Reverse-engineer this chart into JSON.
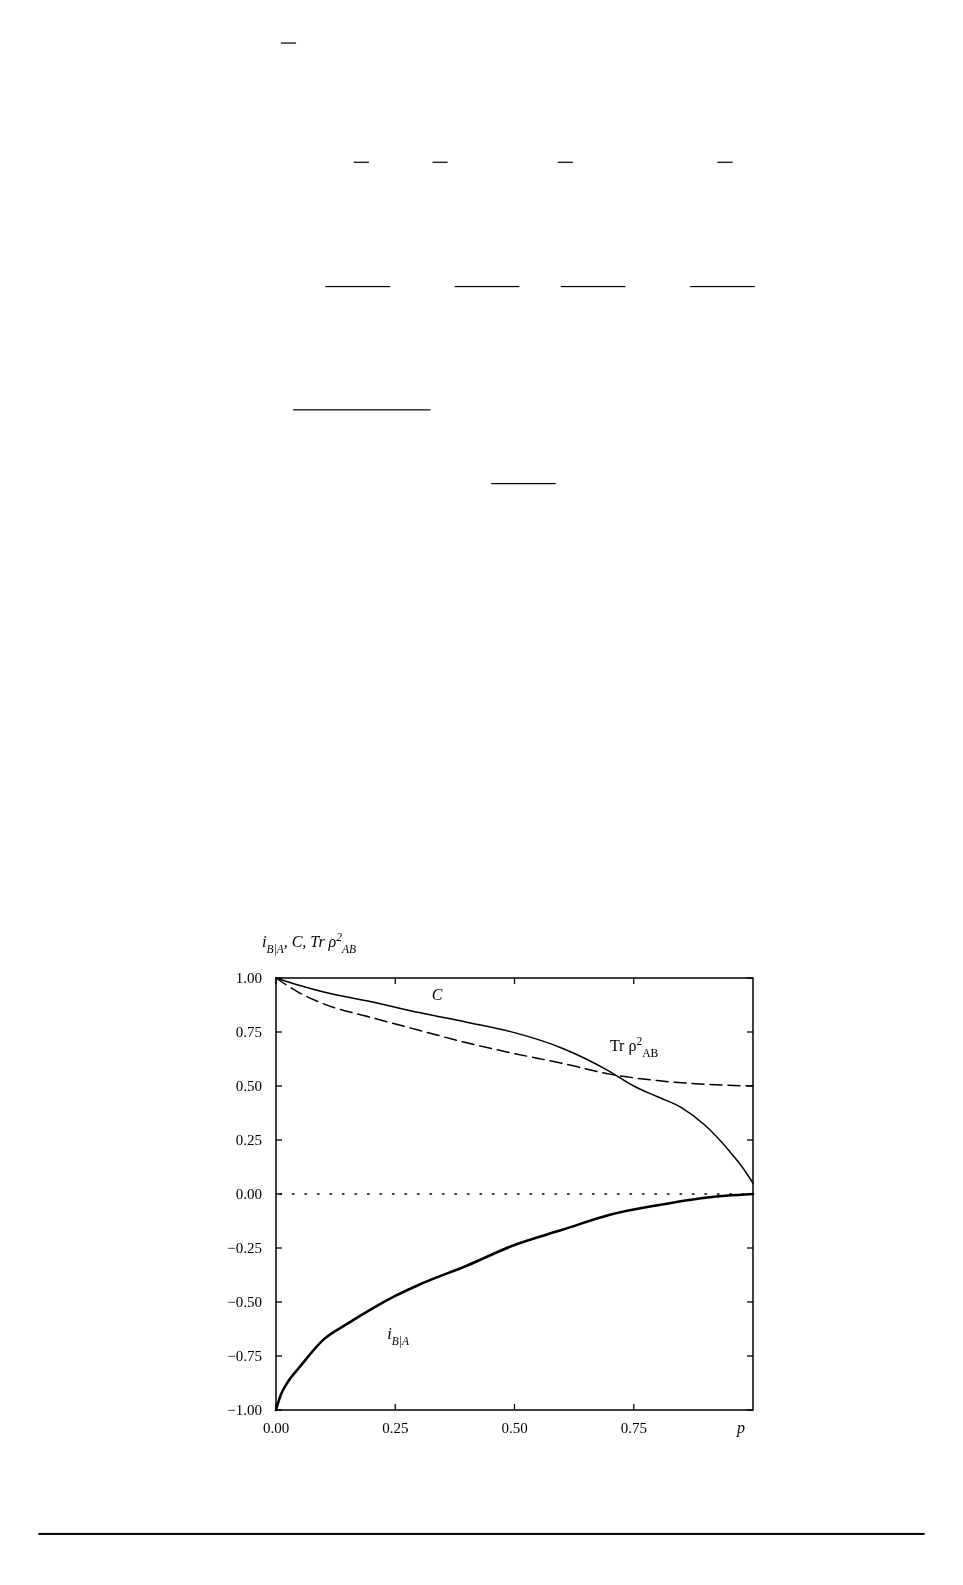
{
  "chart_data": {
    "type": "line",
    "ylabel": "i$_{B|A}$, C, Tr ρ$^{2}$$_{AB}$",
    "xlabel": "p",
    "xlim": [
      0,
      1
    ],
    "ylim": [
      -1,
      1
    ],
    "xticks": [
      {
        "value": 0,
        "label": "0.00"
      },
      {
        "value": 0.25,
        "label": "0.25"
      },
      {
        "value": 0.5,
        "label": "0.50"
      },
      {
        "value": 0.75,
        "label": "0.75"
      }
    ],
    "yticks": [
      {
        "value": -1,
        "label": "−1.00"
      },
      {
        "value": -0.75,
        "label": "−0.75"
      },
      {
        "value": -0.5,
        "label": "−0.50"
      },
      {
        "value": -0.25,
        "label": "−0.25"
      },
      {
        "value": 0,
        "label": "0.00"
      },
      {
        "value": 0.25,
        "label": "0.25"
      },
      {
        "value": 0.5,
        "label": "0.50"
      },
      {
        "value": 0.75,
        "label": "0.75"
      },
      {
        "value": 1,
        "label": "1.00"
      }
    ],
    "grid": false,
    "marker": "none",
    "series": [
      {
        "name": "C",
        "color": "#000000",
        "line_style": "solid",
        "x": [
          0,
          0.05,
          0.1,
          0.2,
          0.3,
          0.4,
          0.5,
          0.6,
          0.7,
          0.75,
          0.8,
          0.85,
          0.9,
          0.95,
          0.98,
          1
        ],
        "values": [
          1,
          0.965,
          0.935,
          0.89,
          0.84,
          0.795,
          0.747,
          0.675,
          0.567,
          0.5,
          0.45,
          0.4,
          0.317,
          0.2,
          0.117,
          0.05
        ]
      },
      {
        "name": "Tr ρ$^{2}$$_{AB}$",
        "color": "#000000",
        "line_style": "dashed",
        "x": [
          0,
          0.05,
          0.1,
          0.2,
          0.3,
          0.4,
          0.5,
          0.6,
          0.7,
          0.8,
          0.9,
          1
        ],
        "values": [
          1,
          0.93,
          0.88,
          0.817,
          0.758,
          0.7,
          0.65,
          0.605,
          0.555,
          0.525,
          0.508,
          0.5
        ]
      },
      {
        "name": "i$_{B|A}$",
        "color": "#000000",
        "line_style": "solid",
        "x": [
          0,
          0.01,
          0.025,
          0.05,
          0.1,
          0.15,
          0.2,
          0.25,
          0.3,
          0.4,
          0.5,
          0.6,
          0.7,
          0.8,
          0.9,
          1
        ],
        "values": [
          -1,
          -0.93,
          -0.87,
          -0.8,
          -0.673,
          -0.6,
          -0.533,
          -0.472,
          -0.42,
          -0.332,
          -0.236,
          -0.166,
          -0.096,
          -0.052,
          -0.017,
          0
        ]
      }
    ],
    "ref_lines": [
      {
        "axis": "y",
        "value": 0,
        "line_style": "dotted",
        "color": "#000000"
      }
    ]
  }
}
